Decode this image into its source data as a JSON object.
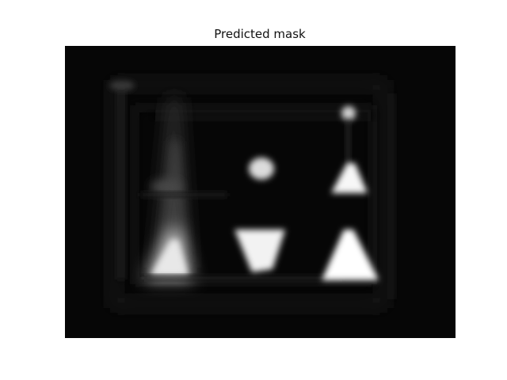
{
  "figure": {
    "title": "Predicted mask"
  },
  "image": {
    "description_icon": "grayscale-mask-image",
    "background_color": "#060606",
    "foreground_color": "#ffffff"
  }
}
